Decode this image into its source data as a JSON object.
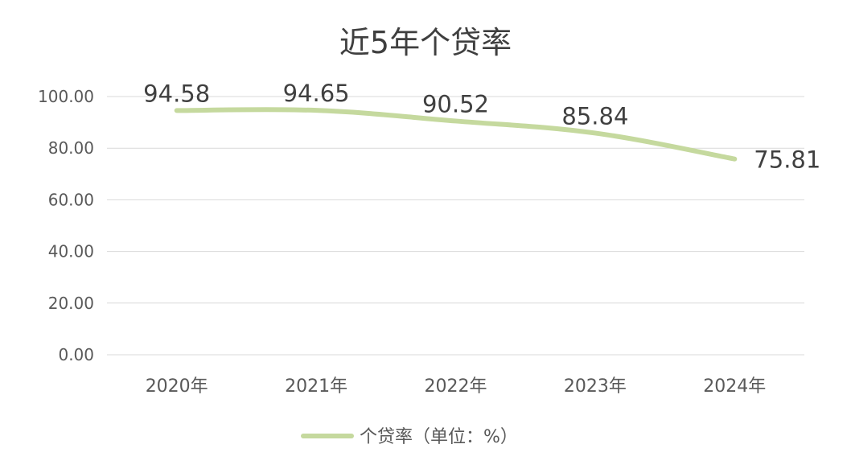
{
  "chart_data": {
    "type": "line",
    "title": "近5年个贷率",
    "categories": [
      "2020年",
      "2021年",
      "2022年",
      "2023年",
      "2024年"
    ],
    "series": [
      {
        "name": "个贷率（单位：%）",
        "values": [
          94.58,
          94.65,
          90.52,
          85.84,
          75.81
        ],
        "color": "#c5d99e"
      }
    ],
    "data_labels": [
      "94.58",
      "94.65",
      "90.52",
      "85.84",
      "75.81"
    ],
    "y_ticks": [
      "0.00",
      "20.00",
      "40.00",
      "60.00",
      "80.00",
      "100.00"
    ],
    "ylim": [
      0,
      100
    ],
    "grid": true,
    "legend_position": "bottom"
  }
}
